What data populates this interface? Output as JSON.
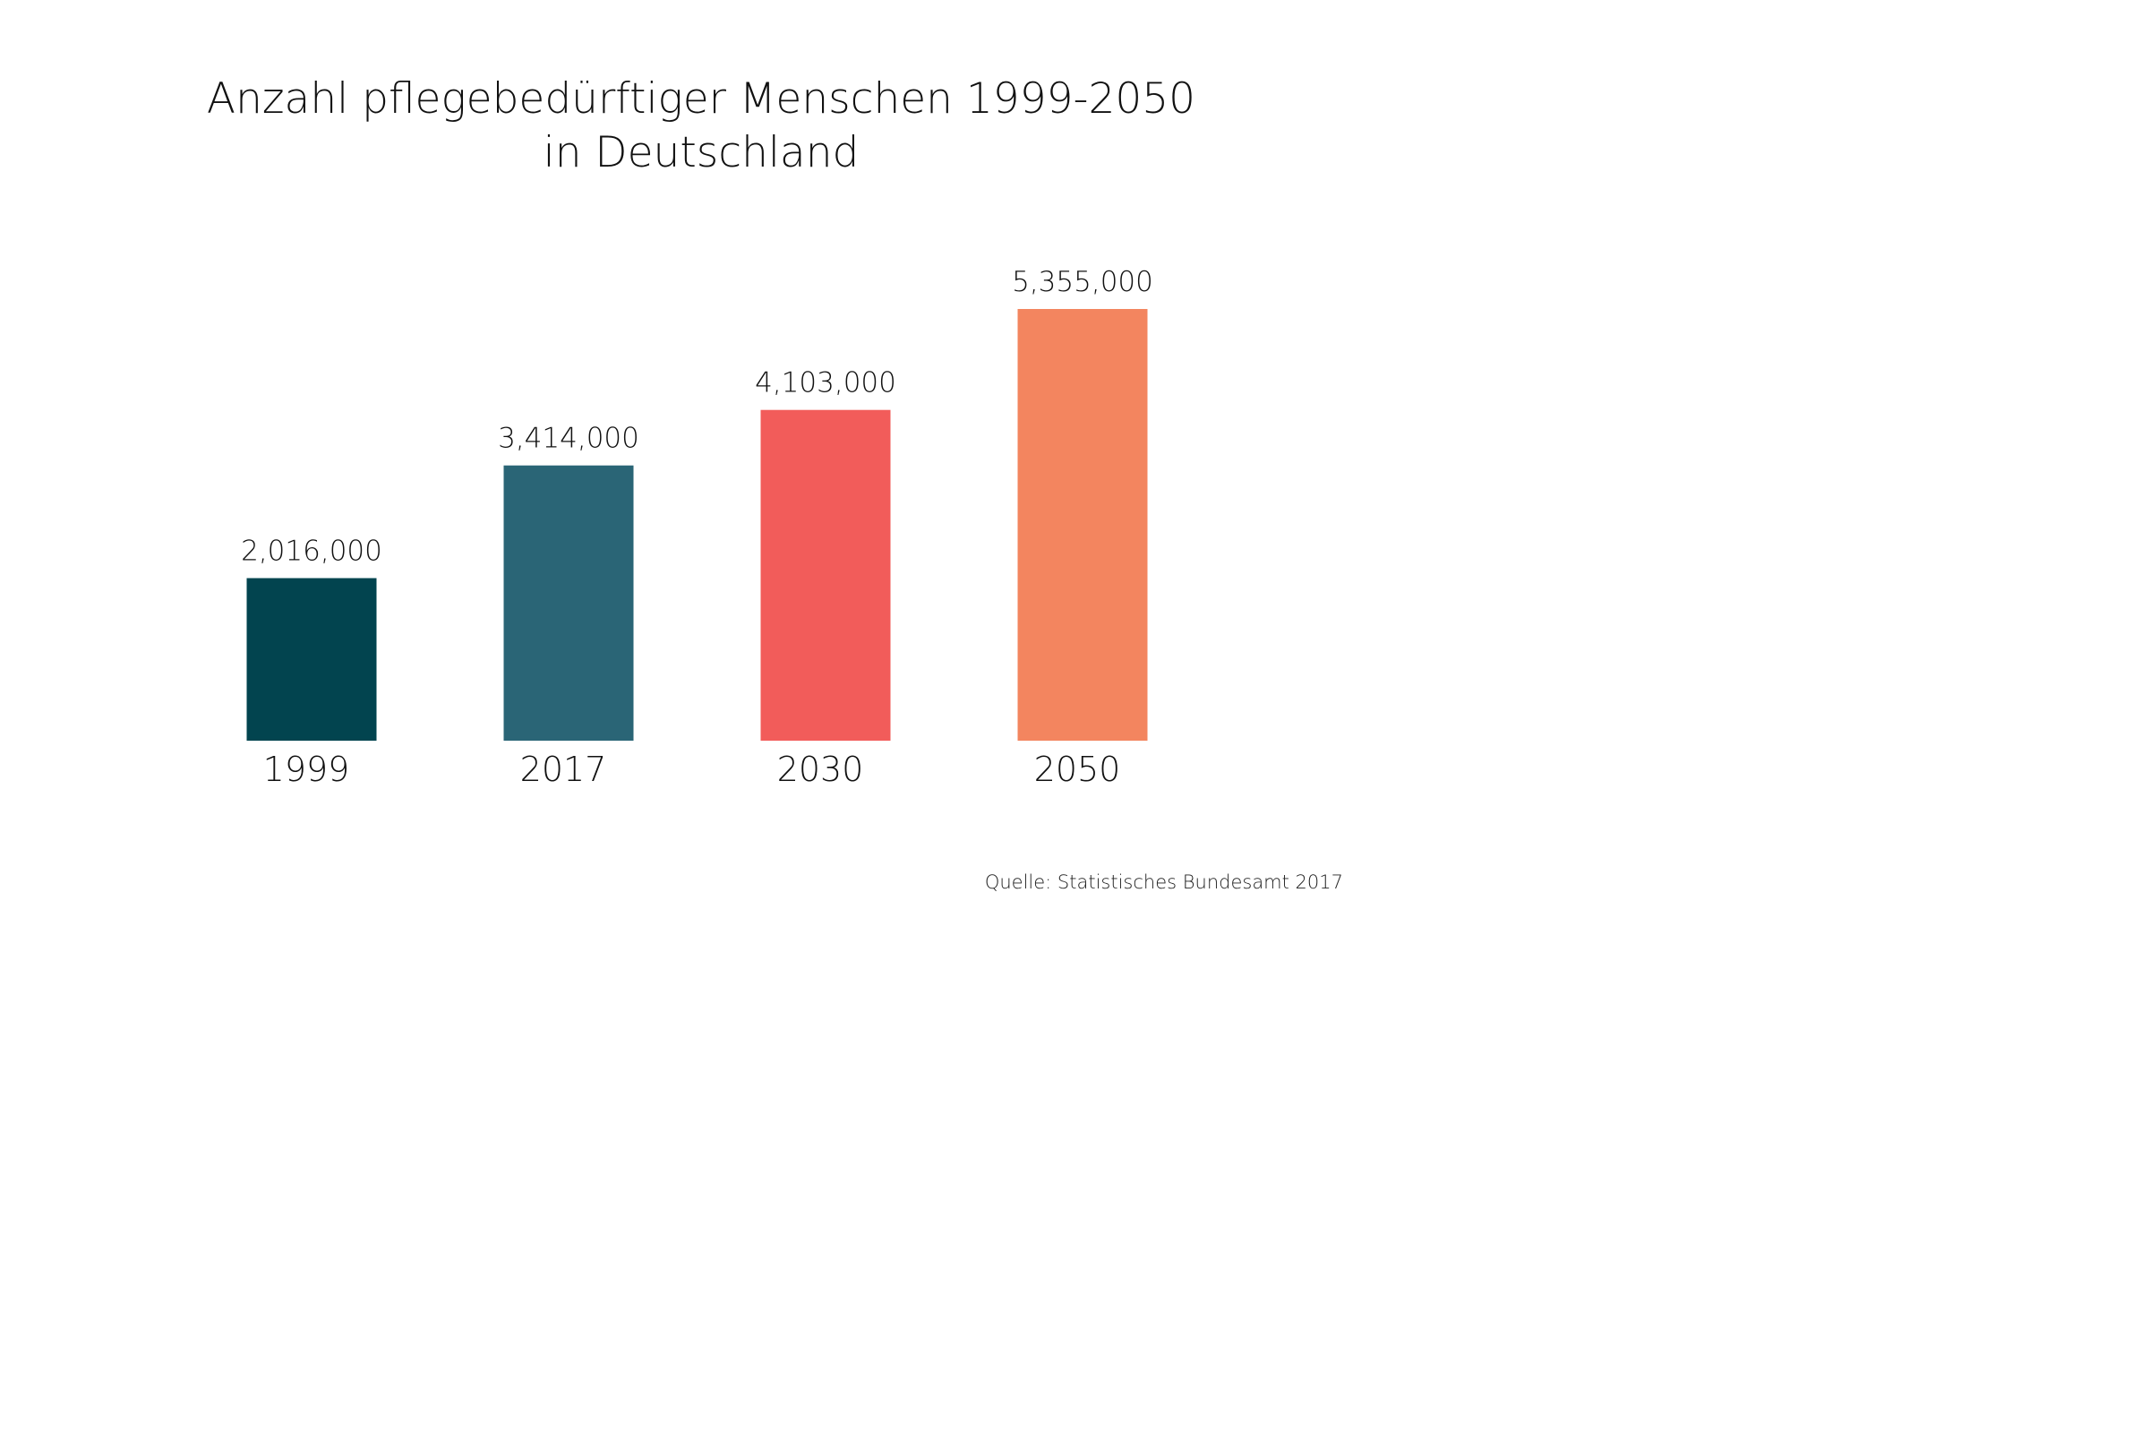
{
  "chart_data": {
    "type": "bar",
    "title": "Anzahl pflegebedürftiger Menschen 1999-2050 in Deutschland",
    "title_lines": [
      "Anzahl pflegebedürftiger Menschen 1999-2050",
      "in Deutschland"
    ],
    "categories": [
      "1999",
      "2017",
      "2030",
      "2050"
    ],
    "values": [
      2016000,
      3414000,
      4103000,
      5355000
    ],
    "value_labels": [
      "2,016,000",
      "3,414,000",
      "4,103,000",
      "5,355,000"
    ],
    "colors": [
      "#02444f",
      "#2a6576",
      "#f25c5a",
      "#f3855f"
    ],
    "xlabel": "",
    "ylabel": "",
    "ylim": [
      0,
      6000000
    ],
    "grid": false,
    "legend": "none",
    "source": "Quelle: Statistisches Bundesamt 2017"
  }
}
